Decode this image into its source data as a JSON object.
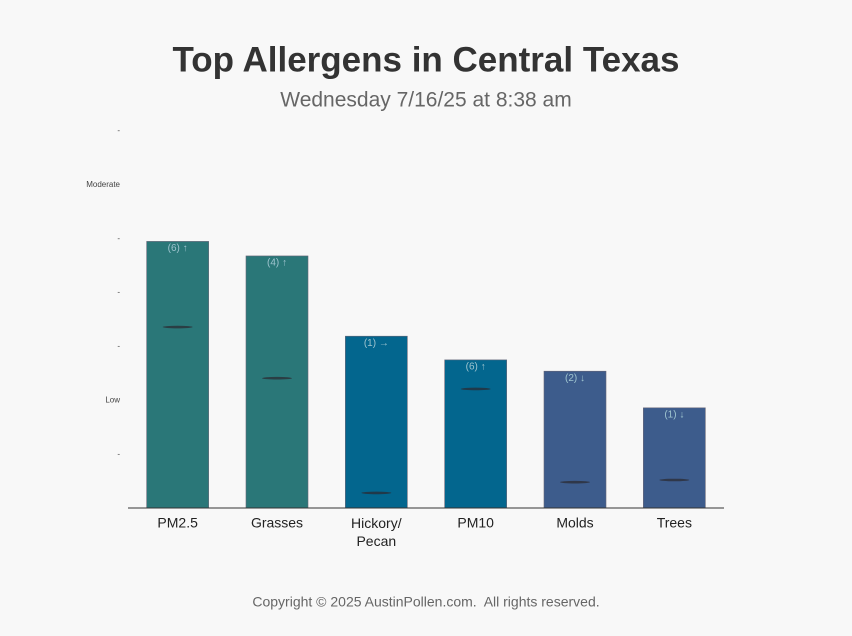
{
  "chart_data": {
    "type": "bar",
    "title": "Top Allergens in Central Texas",
    "subtitle": "Wednesday 7/16/25 at 8:38 am",
    "categories": [
      "PM2.5",
      "Grasses",
      "Hickory/\nPecan",
      "PM10",
      "Molds",
      "Trees"
    ],
    "values": [
      4.95,
      4.68,
      3.19,
      2.75,
      2.54,
      1.86
    ],
    "colors": [
      "#2a7778",
      "#2a7778",
      "#03668e",
      "#03668e",
      "#3d5c8c",
      "#3d5c8c"
    ],
    "annotations": [
      "(6) ↑",
      "(4) ↑",
      "(1) →",
      "(6) ↑",
      "(2) ↓",
      "(1) ↓"
    ],
    "markers": [
      3.36,
      2.41,
      0.28,
      2.21,
      0.48,
      0.52
    ],
    "ylim": [
      0,
      7
    ],
    "yticks": [
      {
        "value": 1,
        "label": "-"
      },
      {
        "value": 2,
        "label": "Low"
      },
      {
        "value": 3,
        "label": "-"
      },
      {
        "value": 4,
        "label": "-"
      },
      {
        "value": 5,
        "label": "-"
      },
      {
        "value": 6,
        "label": "Moderate"
      },
      {
        "value": 7,
        "label": "-"
      }
    ],
    "grid": false,
    "footer": "Copyright © 2025 AustinPollen.com.  All rights reserved."
  }
}
